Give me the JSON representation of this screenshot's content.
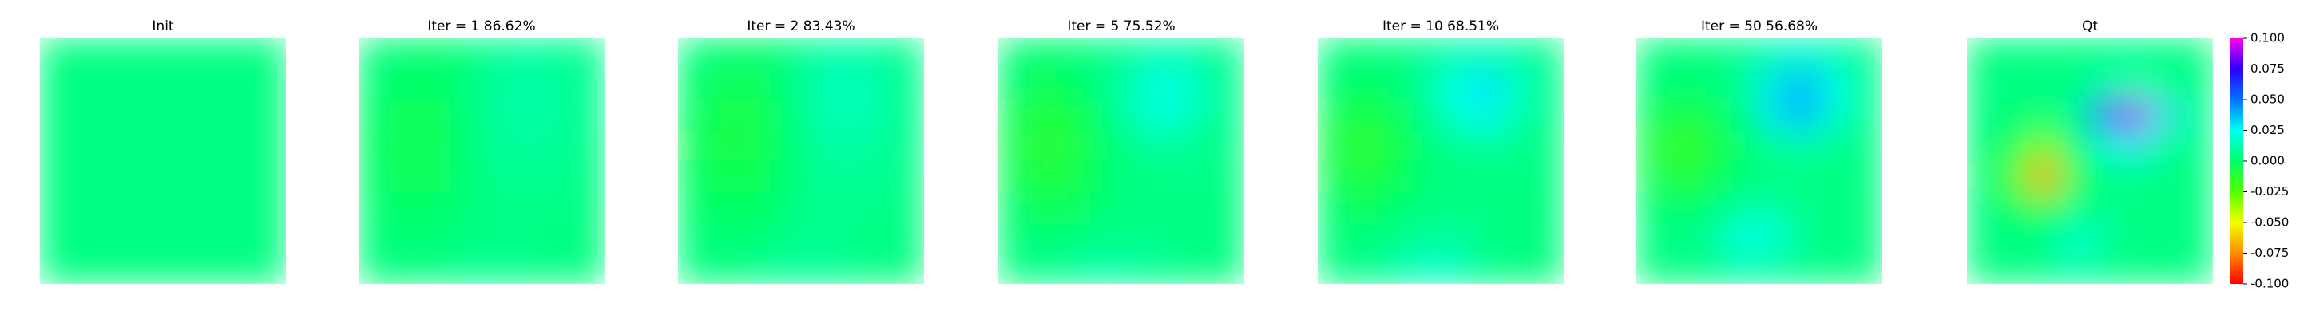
{
  "chart_data": [
    {
      "type": "heatmap",
      "title": "Init",
      "z": [
        [
          0.005,
          0.005,
          0.005,
          0.005,
          0.005,
          0.005,
          0.005,
          0.005
        ],
        [
          0.005,
          0.005,
          0.005,
          0.005,
          0.005,
          0.005,
          0.005,
          0.005
        ],
        [
          0.005,
          0.005,
          0.005,
          0.005,
          0.005,
          0.005,
          0.005,
          0.005
        ],
        [
          0.005,
          0.005,
          0.005,
          0.005,
          0.005,
          0.005,
          0.005,
          0.005
        ],
        [
          0.005,
          0.005,
          0.005,
          0.005,
          0.005,
          0.005,
          0.005,
          0.005
        ],
        [
          0.005,
          0.005,
          0.005,
          0.005,
          0.005,
          0.005,
          0.005,
          0.005
        ],
        [
          0.005,
          0.005,
          0.005,
          0.005,
          0.005,
          0.005,
          0.005,
          0.005
        ],
        [
          0.005,
          0.005,
          0.005,
          0.005,
          0.005,
          0.005,
          0.005,
          0.005
        ]
      ]
    },
    {
      "type": "heatmap",
      "title": "Iter = 1    86.62%",
      "z": [
        [
          0.005,
          0.003,
          0.002,
          0.004,
          0.008,
          0.01,
          0.009,
          0.007
        ],
        [
          0.003,
          0.0,
          -0.001,
          0.004,
          0.01,
          0.012,
          0.01,
          0.007
        ],
        [
          0.001,
          -0.003,
          -0.003,
          0.003,
          0.01,
          0.012,
          0.01,
          0.007
        ],
        [
          0.0,
          -0.004,
          -0.003,
          0.003,
          0.009,
          0.01,
          0.009,
          0.006
        ],
        [
          0.001,
          -0.003,
          -0.002,
          0.003,
          0.007,
          0.008,
          0.007,
          0.006
        ],
        [
          0.003,
          0.0,
          0.0,
          0.004,
          0.006,
          0.006,
          0.006,
          0.005
        ],
        [
          0.004,
          0.003,
          0.003,
          0.005,
          0.006,
          0.006,
          0.005,
          0.005
        ],
        [
          0.005,
          0.004,
          0.005,
          0.007,
          0.007,
          0.006,
          0.005,
          0.005
        ]
      ]
    },
    {
      "type": "heatmap",
      "title": "Iter = 2    83.43%",
      "z": [
        [
          0.005,
          0.002,
          0.001,
          0.004,
          0.01,
          0.013,
          0.01,
          0.007
        ],
        [
          0.002,
          -0.002,
          -0.003,
          0.004,
          0.012,
          0.016,
          0.012,
          0.007
        ],
        [
          0.0,
          -0.006,
          -0.006,
          0.002,
          0.012,
          0.015,
          0.012,
          0.007
        ],
        [
          -0.002,
          -0.007,
          -0.006,
          0.002,
          0.01,
          0.012,
          0.01,
          0.006
        ],
        [
          0.0,
          -0.005,
          -0.004,
          0.002,
          0.008,
          0.009,
          0.008,
          0.006
        ],
        [
          0.002,
          -0.001,
          -0.001,
          0.004,
          0.007,
          0.007,
          0.006,
          0.005
        ],
        [
          0.004,
          0.003,
          0.003,
          0.006,
          0.008,
          0.007,
          0.005,
          0.005
        ],
        [
          0.005,
          0.004,
          0.006,
          0.009,
          0.009,
          0.007,
          0.005,
          0.005
        ]
      ]
    },
    {
      "type": "heatmap",
      "title": "Iter = 5    75.52%",
      "z": [
        [
          0.004,
          0.002,
          0.003,
          0.006,
          0.01,
          0.014,
          0.01,
          0.006
        ],
        [
          0.002,
          -0.003,
          0.0,
          0.006,
          0.016,
          0.024,
          0.016,
          0.007
        ],
        [
          -0.002,
          -0.01,
          -0.006,
          0.004,
          0.015,
          0.022,
          0.014,
          0.006
        ],
        [
          -0.005,
          -0.013,
          -0.008,
          0.002,
          0.008,
          0.01,
          0.008,
          0.005
        ],
        [
          -0.003,
          -0.01,
          -0.006,
          0.002,
          0.005,
          0.006,
          0.006,
          0.005
        ],
        [
          0.001,
          -0.003,
          -0.002,
          0.003,
          0.005,
          0.005,
          0.005,
          0.005
        ],
        [
          0.004,
          0.003,
          0.004,
          0.006,
          0.007,
          0.006,
          0.005,
          0.005
        ],
        [
          0.005,
          0.006,
          0.009,
          0.013,
          0.01,
          0.007,
          0.005,
          0.005
        ]
      ]
    },
    {
      "type": "heatmap",
      "title": "Iter = 10    68.51%",
      "z": [
        [
          0.005,
          0.004,
          0.005,
          0.008,
          0.012,
          0.014,
          0.01,
          0.006
        ],
        [
          0.003,
          0.0,
          0.002,
          0.01,
          0.024,
          0.03,
          0.018,
          0.006
        ],
        [
          -0.002,
          -0.008,
          -0.003,
          0.006,
          0.02,
          0.026,
          0.014,
          0.005
        ],
        [
          -0.006,
          -0.014,
          -0.006,
          0.003,
          0.008,
          0.01,
          0.007,
          0.005
        ],
        [
          -0.003,
          -0.01,
          -0.004,
          0.003,
          0.004,
          0.005,
          0.005,
          0.005
        ],
        [
          0.002,
          -0.002,
          0.001,
          0.004,
          0.006,
          0.005,
          0.004,
          0.005
        ],
        [
          0.004,
          0.004,
          0.006,
          0.01,
          0.01,
          0.006,
          0.004,
          0.005
        ],
        [
          0.005,
          0.006,
          0.01,
          0.018,
          0.015,
          0.007,
          0.005,
          0.005
        ]
      ]
    },
    {
      "type": "heatmap",
      "title": "Iter = 50    56.68%",
      "z": [
        [
          0.005,
          0.004,
          0.005,
          0.008,
          0.014,
          0.018,
          0.012,
          0.006
        ],
        [
          0.004,
          0.002,
          0.003,
          0.01,
          0.03,
          0.04,
          0.024,
          0.007
        ],
        [
          -0.001,
          -0.008,
          -0.002,
          0.006,
          0.03,
          0.038,
          0.02,
          0.006
        ],
        [
          -0.007,
          -0.017,
          -0.008,
          0.003,
          0.01,
          0.012,
          0.008,
          0.005
        ],
        [
          -0.004,
          -0.012,
          -0.005,
          0.003,
          0.004,
          0.005,
          0.005,
          0.005
        ],
        [
          0.003,
          0.001,
          0.004,
          0.01,
          0.012,
          0.006,
          0.005,
          0.005
        ],
        [
          0.005,
          0.005,
          0.01,
          0.024,
          0.02,
          0.008,
          0.005,
          0.005
        ],
        [
          0.005,
          0.005,
          0.007,
          0.012,
          0.01,
          0.006,
          0.005,
          0.005
        ]
      ]
    },
    {
      "type": "heatmap",
      "title": "Qt",
      "z": [
        [
          0.005,
          0.005,
          0.005,
          0.005,
          0.006,
          0.006,
          0.005,
          0.005
        ],
        [
          0.005,
          0.005,
          0.005,
          0.006,
          0.012,
          0.014,
          0.008,
          0.005
        ],
        [
          0.005,
          0.004,
          0.003,
          0.008,
          0.06,
          0.09,
          0.03,
          0.006
        ],
        [
          0.004,
          0.0,
          -0.03,
          0.002,
          0.02,
          0.03,
          0.01,
          0.005
        ],
        [
          0.004,
          -0.02,
          -0.075,
          -0.005,
          0.006,
          0.006,
          0.005,
          0.005
        ],
        [
          0.005,
          0.002,
          -0.01,
          0.004,
          0.008,
          0.005,
          0.005,
          0.005
        ],
        [
          0.005,
          0.005,
          0.005,
          0.02,
          0.01,
          0.005,
          0.005,
          0.005
        ],
        [
          0.005,
          0.005,
          0.005,
          0.012,
          0.007,
          0.005,
          0.005,
          0.005
        ]
      ]
    }
  ],
  "colorbar": {
    "clim": [
      -0.1,
      0.1
    ],
    "colors": [
      "#ff0000",
      "#ff8c00",
      "#f2ff00",
      "#55ff00",
      "#00ff66",
      "#00fff2",
      "#0073ff",
      "#2a00ff",
      "#ff00ea"
    ],
    "ticks": [
      {
        "value": 0.1,
        "label": "0.100"
      },
      {
        "value": 0.075,
        "label": "0.075"
      },
      {
        "value": 0.05,
        "label": "0.050"
      },
      {
        "value": 0.025,
        "label": "0.025"
      },
      {
        "value": 0,
        "label": "0.000"
      },
      {
        "value": -0.025,
        "label": "-0.025"
      },
      {
        "value": -0.05,
        "label": "-0.050"
      },
      {
        "value": -0.075,
        "label": "-0.075"
      },
      {
        "value": -0.1,
        "label": "-0.100"
      }
    ]
  }
}
